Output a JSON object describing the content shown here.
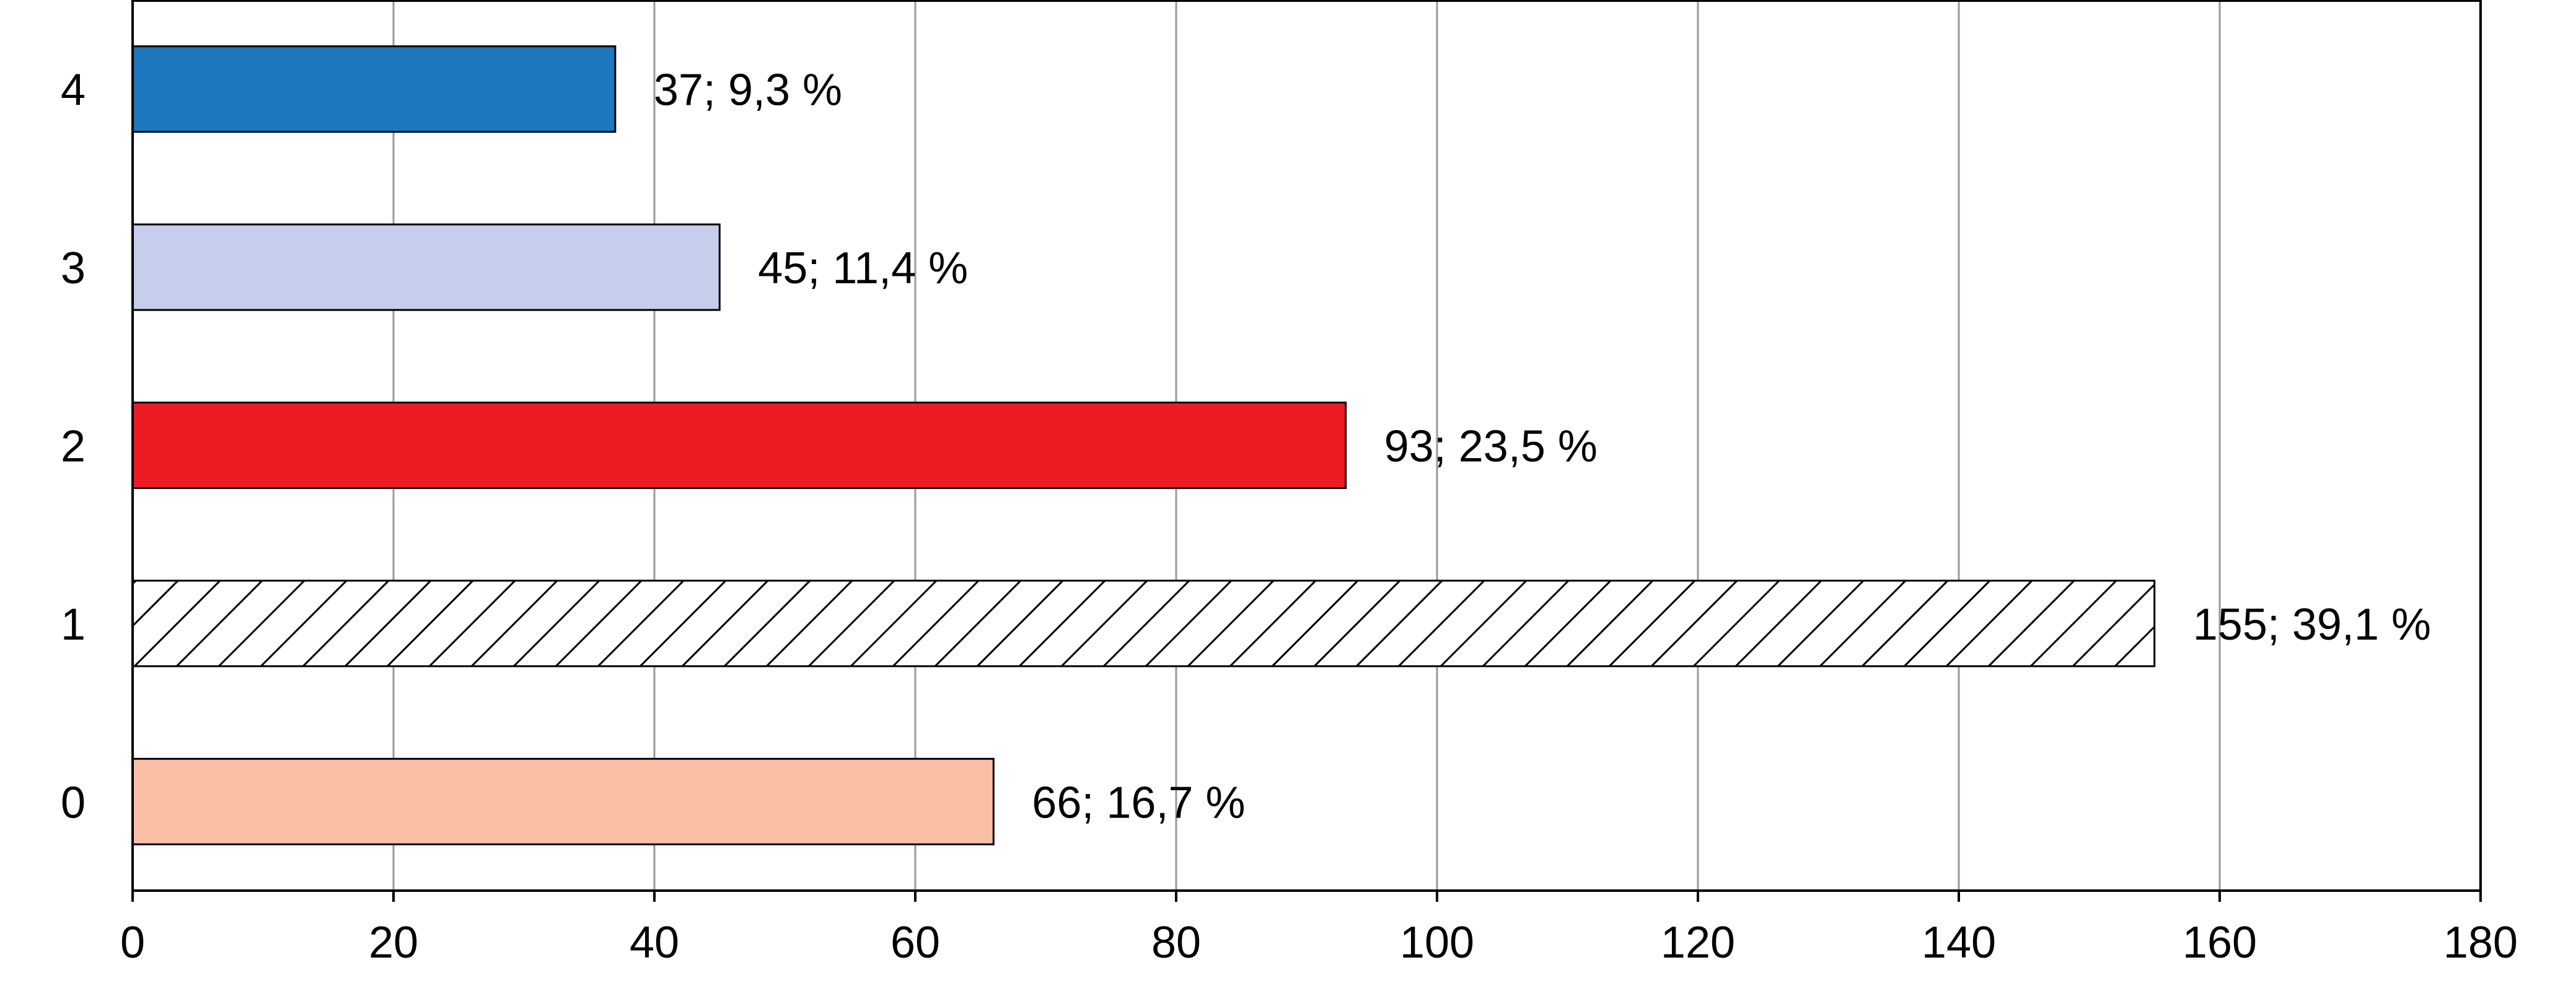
{
  "chart_data": {
    "type": "bar",
    "orientation": "horizontal",
    "categories": [
      "0",
      "1",
      "2",
      "3",
      "4"
    ],
    "values": [
      66,
      155,
      93,
      45,
      37
    ],
    "data_labels": [
      "66; 16,7 %",
      "155; 39,1 %",
      "93; 23,5 %",
      "45; 11,4 %",
      "37; 9,3 %"
    ],
    "bar_fills": [
      {
        "color": "#FBBFA6",
        "pattern": "none"
      },
      {
        "color": "#FFFFFF",
        "pattern": "diagonal-hatch"
      },
      {
        "color": "#ED1C24",
        "pattern": "none"
      },
      {
        "color": "#C5CEEA",
        "pattern": "none"
      },
      {
        "color": "#1F77BD",
        "pattern": "none"
      }
    ],
    "bar_outline_color": "#000000",
    "xlim": [
      0,
      180
    ],
    "x_ticks": [
      0,
      20,
      40,
      60,
      80,
      100,
      120,
      140,
      160,
      180
    ],
    "x_tick_labels": [
      "0",
      "20",
      "40",
      "60",
      "80",
      "100",
      "120",
      "140",
      "160",
      "180"
    ],
    "grid": "vertical",
    "grid_color": "#999999",
    "title": "",
    "xlabel": "",
    "ylabel": "",
    "legend": "none"
  }
}
